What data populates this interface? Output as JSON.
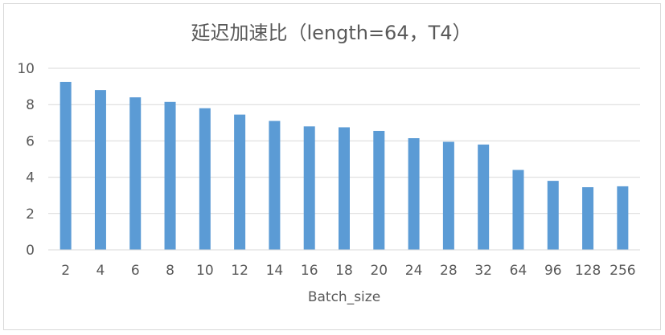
{
  "chart_data": {
    "type": "bar",
    "title": "延迟加速比（length=64，T4）",
    "xlabel": "Batch_size",
    "ylabel": "",
    "categories": [
      "2",
      "4",
      "6",
      "8",
      "10",
      "12",
      "14",
      "16",
      "18",
      "20",
      "24",
      "28",
      "32",
      "64",
      "96",
      "128",
      "256"
    ],
    "values": [
      9.25,
      8.8,
      8.4,
      8.15,
      7.8,
      7.45,
      7.1,
      6.8,
      6.75,
      6.55,
      6.15,
      5.95,
      5.8,
      4.4,
      3.8,
      3.45,
      3.5
    ],
    "ylim": [
      0,
      10
    ],
    "yticks": [
      "0",
      "2",
      "4",
      "6",
      "8",
      "10"
    ],
    "grid": true,
    "legend": "none",
    "bar_color": "#5b9bd5"
  }
}
